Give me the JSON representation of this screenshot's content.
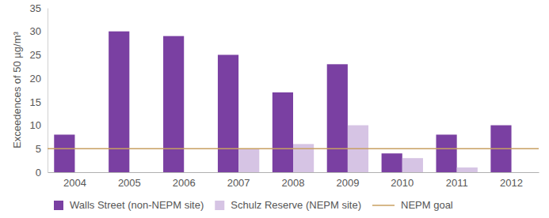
{
  "chart_data": {
    "type": "bar",
    "y_label": "Exceedences of 50 µg/m³",
    "categories": [
      "2004",
      "2005",
      "2006",
      "2007",
      "2008",
      "2009",
      "2010",
      "2011",
      "2012"
    ],
    "series": [
      {
        "name": "Walls Street (non-NEPM site)",
        "type": "bar",
        "color": "#7a40a2",
        "values": [
          8,
          30,
          29,
          25,
          17,
          23,
          4,
          8,
          10
        ]
      },
      {
        "name": "Schulz Reserve (NEPM site)",
        "type": "bar",
        "color": "#d6c4e4",
        "values": [
          null,
          null,
          null,
          5,
          6,
          10,
          3,
          1,
          null
        ]
      },
      {
        "name": "NEPM goal",
        "type": "line",
        "color": "#c8a062",
        "values": [
          5,
          5,
          5,
          5,
          5,
          5,
          5,
          5,
          5
        ]
      }
    ],
    "ylim": [
      0,
      35
    ],
    "yticks": [
      0,
      5,
      10,
      15,
      20,
      25,
      30,
      35
    ],
    "grid": false,
    "legend": "bottom"
  }
}
